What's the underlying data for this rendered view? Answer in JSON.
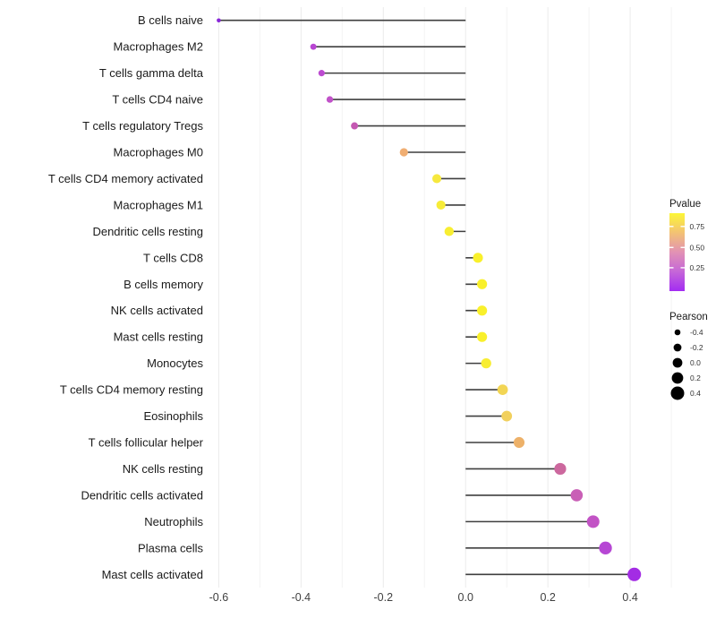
{
  "chart_data": {
    "type": "lollipop",
    "orientation": "horizontal",
    "title": "",
    "xlabel": "",
    "ylabel": "",
    "xlim": [
      -0.627,
      0.539
    ],
    "xticks": [
      -0.6,
      -0.4,
      -0.2,
      0.0,
      0.2,
      0.4
    ],
    "xtick_labels": [
      "-0.6",
      "-0.4",
      "-0.2",
      "0.0",
      "0.2",
      "0.4"
    ],
    "minor_gridlines": [
      -0.5,
      -0.3,
      -0.1,
      0.1,
      0.3,
      0.5
    ],
    "grid": "vertical-only",
    "baseline_value": 0,
    "categories": [
      "B cells naive",
      "Macrophages M2",
      "T cells gamma delta",
      "T cells CD4 naive",
      "T cells regulatory  Tregs",
      "Macrophages M0",
      "T cells CD4 memory activated",
      "Macrophages M1",
      "Dendritic cells resting",
      "T cells CD8",
      "B cells memory",
      "NK cells activated",
      "Mast cells resting",
      "Monocytes",
      "T cells CD4 memory resting",
      "Eosinophils",
      "T cells follicular helper",
      "NK cells resting",
      "Dendritic cells activated",
      "Neutrophils",
      "Plasma cells",
      "Mast cells activated"
    ],
    "series": [
      {
        "name": "Pearson",
        "values": [
          -0.6,
          -0.37,
          -0.35,
          -0.33,
          -0.27,
          -0.15,
          -0.07,
          -0.06,
          -0.04,
          0.03,
          0.04,
          0.04,
          0.04,
          0.05,
          0.09,
          0.1,
          0.13,
          0.23,
          0.27,
          0.31,
          0.34,
          0.41
        ]
      }
    ],
    "point_colors": [
      "#8826d8",
      "#b846d2",
      "#bc4bd0",
      "#c152c9",
      "#c458b2",
      "#f0ae72",
      "#f6e83e",
      "#f7ec38",
      "#f8ee32",
      "#f9f02b",
      "#f9f02b",
      "#f9f02b",
      "#f9f02b",
      "#f8ed33",
      "#f2d554",
      "#f1d05e",
      "#edb169",
      "#cc689e",
      "#c95fb6",
      "#c253c5",
      "#b647d4",
      "#a32ce4"
    ],
    "stem_color": "#3f3f3f",
    "axis_text_color": "#404040",
    "label_text_color": "#1a1a1a",
    "legends": {
      "pvalue": {
        "title": "Pvalue",
        "tick_labels": [
          "0.75",
          "0.50",
          "0.25"
        ],
        "gradient_top_to_bottom": [
          "#fcf636",
          "#f3c274",
          "#e292b4",
          "#c566d8",
          "#a32cf2"
        ]
      },
      "pearson": {
        "title": "Pearson",
        "dot_color": "#000000",
        "entries": [
          {
            "label": "-0.4",
            "radius": 3.3
          },
          {
            "label": "-0.2",
            "radius": 4.4
          },
          {
            "label": "0.0",
            "radius": 5.4
          },
          {
            "label": "0.2",
            "radius": 6.4
          },
          {
            "label": "0.4",
            "radius": 7.5
          }
        ]
      }
    }
  }
}
